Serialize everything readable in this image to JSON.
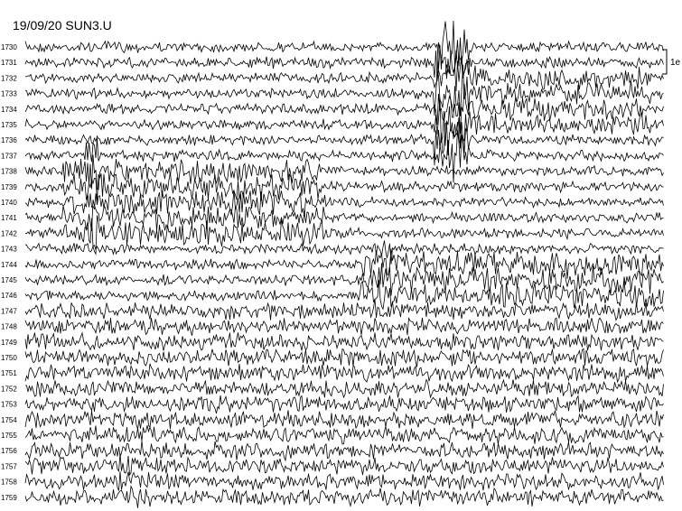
{
  "chart_data": {
    "type": "line",
    "title": "19/09/20 SUN3.U",
    "row_labels": [
      "1730",
      "1731",
      "1732",
      "1733",
      "1734",
      "1735",
      "1736",
      "1737",
      "1738",
      "1739",
      "1740",
      "1741",
      "1742",
      "1743",
      "1744",
      "1745",
      "1746",
      "1747",
      "1748",
      "1749",
      "1750",
      "1751",
      "1752",
      "1753",
      "1754",
      "1755",
      "1756",
      "1757",
      "1758",
      "1759"
    ],
    "scale_label": "1e",
    "trace_color": "#000000",
    "grid": false
  }
}
